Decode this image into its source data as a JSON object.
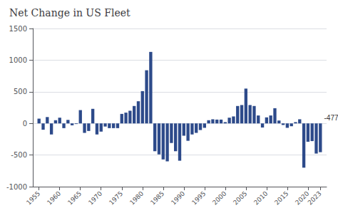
{
  "chart_data": {
    "type": "bar",
    "title": "Net Change in US Fleet",
    "x": [
      1955,
      1956,
      1957,
      1958,
      1959,
      1960,
      1961,
      1962,
      1963,
      1964,
      1965,
      1966,
      1967,
      1968,
      1969,
      1970,
      1971,
      1972,
      1973,
      1974,
      1975,
      1976,
      1977,
      1978,
      1979,
      1980,
      1981,
      1982,
      1983,
      1984,
      1985,
      1986,
      1987,
      1988,
      1989,
      1990,
      1991,
      1992,
      1993,
      1994,
      1995,
      1996,
      1997,
      1998,
      1999,
      2000,
      2001,
      2002,
      2003,
      2004,
      2005,
      2006,
      2007,
      2008,
      2009,
      2010,
      2011,
      2012,
      2013,
      2014,
      2015,
      2016,
      2017,
      2018,
      2019,
      2020,
      2021,
      2022,
      2023
    ],
    "values": [
      75,
      -100,
      100,
      -175,
      50,
      90,
      -75,
      55,
      -30,
      -10,
      210,
      -150,
      -120,
      230,
      -175,
      -130,
      -50,
      -75,
      -75,
      -75,
      150,
      170,
      200,
      275,
      350,
      510,
      840,
      1130,
      -440,
      -490,
      -570,
      -600,
      -310,
      -440,
      -590,
      -195,
      -275,
      -175,
      -150,
      -105,
      -70,
      50,
      65,
      60,
      60,
      20,
      90,
      110,
      275,
      290,
      550,
      290,
      275,
      125,
      -65,
      95,
      125,
      240,
      45,
      -25,
      -70,
      -45,
      20,
      65,
      -700,
      -290,
      -280,
      -477,
      -455
    ],
    "color": "#2d4a8a",
    "xlim": [
      1953.5,
      2024.5
    ],
    "xticks": [
      1955,
      1960,
      1965,
      1970,
      1975,
      1980,
      1985,
      1990,
      1995,
      2000,
      2005,
      2010,
      2015,
      2020,
      2023
    ],
    "ylim": [
      -1000,
      1500
    ],
    "yticks": [
      -1000,
      -500,
      0,
      500,
      1000,
      1500
    ],
    "grid": true,
    "annotations": [
      {
        "text": "-477",
        "x": 2022
      }
    ]
  }
}
